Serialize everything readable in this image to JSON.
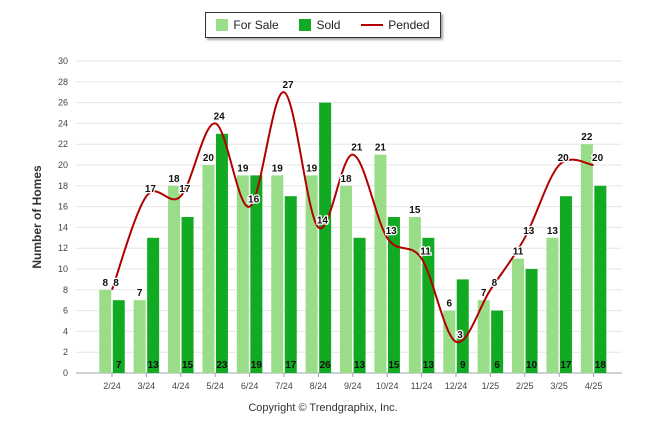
{
  "chart_data": {
    "type": "bar",
    "categories": [
      "2/24",
      "3/24",
      "4/24",
      "5/24",
      "6/24",
      "7/24",
      "8/24",
      "9/24",
      "10/24",
      "11/24",
      "12/24",
      "1/25",
      "2/25",
      "3/25",
      "4/25"
    ],
    "series": [
      {
        "name": "For Sale",
        "type": "bar",
        "color": "#99dd88",
        "values": [
          8,
          7,
          18,
          20,
          19,
          19,
          19,
          18,
          21,
          15,
          6,
          7,
          11,
          13,
          22
        ]
      },
      {
        "name": "Sold",
        "type": "bar",
        "color": "#11aa22",
        "values": [
          7,
          13,
          15,
          23,
          19,
          17,
          26,
          13,
          15,
          13,
          9,
          6,
          10,
          17,
          18
        ]
      },
      {
        "name": "Pended",
        "type": "line",
        "color": "#b20000",
        "values": [
          8,
          17,
          17,
          24,
          16,
          27,
          14,
          21,
          13,
          11,
          3,
          8,
          13,
          20,
          20
        ]
      }
    ],
    "ylabel": "Number of Homes",
    "ylim": [
      0,
      30
    ],
    "yticks": [
      0,
      2,
      4,
      6,
      8,
      10,
      12,
      14,
      16,
      18,
      20,
      22,
      24,
      26,
      28,
      30
    ],
    "grid": true,
    "legend_position": "top-center"
  },
  "legend": {
    "for_sale": "For Sale",
    "sold": "Sold",
    "pended": "Pended"
  },
  "axis": {
    "ylabel": "Number of Homes"
  },
  "footer": {
    "copyright": "Copyright © Trendgraphix, Inc."
  }
}
